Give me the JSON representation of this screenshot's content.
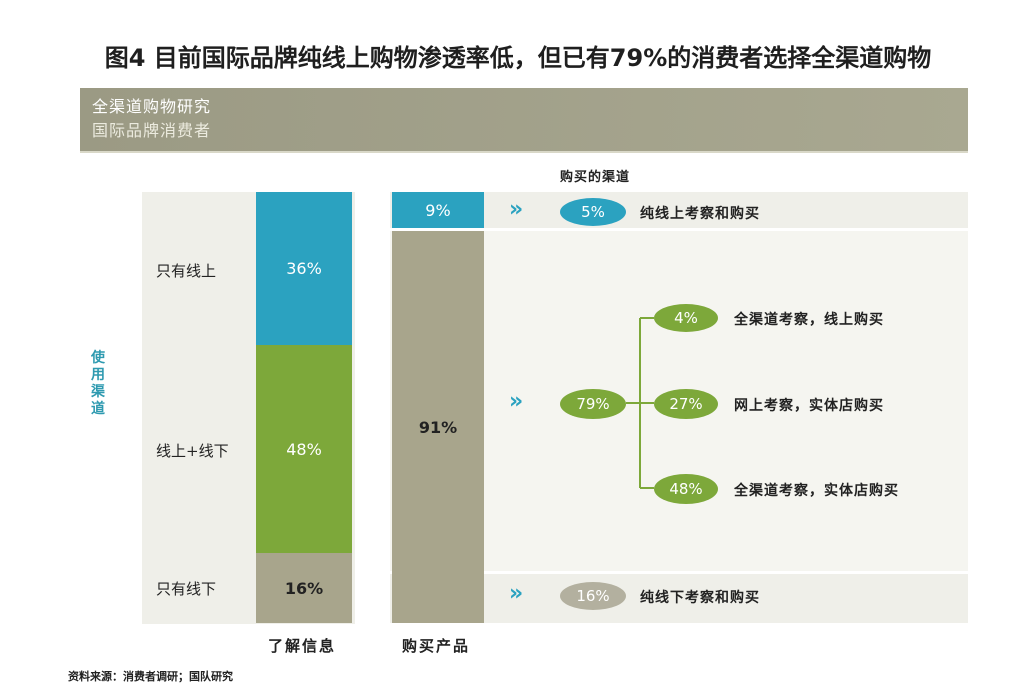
{
  "title": "图4 目前国际品牌纯线上购物渗透率低，但已有79%的消费者选择全渠道购物",
  "banner": {
    "line1": "全渠道购物研究",
    "line2": "国际品牌消费者"
  },
  "side_label": "使用渠道",
  "channels": [
    {
      "label": "只有线上",
      "value": "36%"
    },
    {
      "label": "线上+线下",
      "value": "48%"
    },
    {
      "label": "只有线下",
      "value": "16%"
    }
  ],
  "info_footer": "了解信息",
  "purchase": {
    "top_value": "9%",
    "main_value": "91%",
    "footer": "购买产品"
  },
  "channel_header": "购买的渠道",
  "paths": {
    "online_only": {
      "value": "5%",
      "label": "纯线上考察和购买"
    },
    "omni_total": {
      "value": "79%"
    },
    "omni_online_buy": {
      "value": "4%",
      "label": "全渠道考察，线上购买"
    },
    "web_offline_buy": {
      "value": "27%",
      "label": "网上考察，实体店购买"
    },
    "omni_offline_buy": {
      "value": "48%",
      "label": "全渠道考察，实体店购买"
    },
    "offline_only": {
      "value": "16%",
      "label": "纯线下考察和购买"
    }
  },
  "arrow_glyph": "»",
  "source": "资料来源：消费者调研；国队研究",
  "colors": {
    "teal": "#2ba2c0",
    "green": "#7da83a",
    "khaki": "#a8a58c",
    "gray_pill": "#b3b09f",
    "banner": "#a3a28b"
  }
}
